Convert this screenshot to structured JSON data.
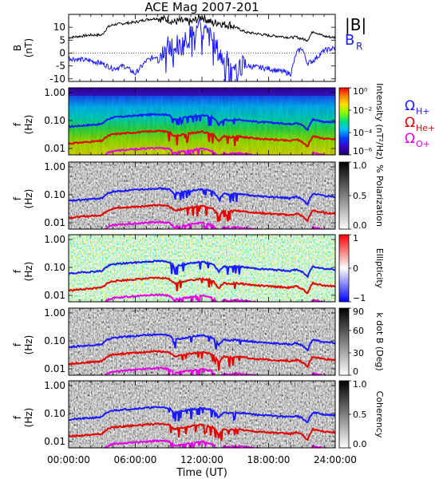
{
  "title": "ACE Mag 2007-201",
  "xlabel": "Time (UT)",
  "xticks": [
    "00:00:00",
    "06:00:00",
    "12:00:00",
    "18:00:00",
    "24:00:00"
  ],
  "freq_ticks": [
    "1.00",
    "0.10",
    "0.01"
  ],
  "freq_label": "f",
  "freq_unit": "(Hz)",
  "gyro_legend": [
    {
      "label": "Ω",
      "sub": "H+",
      "color": "#1a1aff"
    },
    {
      "label": "Ω",
      "sub": "He+",
      "color": "#e60000"
    },
    {
      "label": "Ω",
      "sub": "O+",
      "color": "#e600e6"
    }
  ],
  "chart_data": [
    {
      "type": "line",
      "panel": "magnetic-field",
      "ylabel": "B",
      "yunit": "(nT)",
      "yticks": [
        "10",
        "5",
        "0",
        "-5",
        "-10"
      ],
      "ylim": [
        -11,
        15
      ],
      "x_hours": [
        0,
        1,
        2,
        3,
        3.5,
        4,
        5,
        6,
        7,
        8,
        9,
        9.5,
        10,
        11,
        12,
        13,
        13.5,
        14,
        14.5,
        15,
        16,
        17,
        18,
        19,
        20,
        20.5,
        21,
        21.5,
        22,
        23,
        24
      ],
      "series": [
        {
          "name": "|B|",
          "color": "#000000",
          "values": [
            6,
            6.5,
            7,
            7,
            10,
            11,
            11.5,
            12,
            13,
            13.5,
            13,
            12,
            12.5,
            12,
            14,
            11.5,
            12,
            11,
            11,
            10,
            8,
            7.5,
            6.8,
            6.5,
            6,
            6.2,
            5.5,
            5,
            8.5,
            6.5,
            6
          ]
        },
        {
          "name": "B",
          "sub": "R",
          "color": "#1a1aff",
          "values": [
            -2,
            -2.5,
            -3,
            -4,
            -5,
            -6,
            -5,
            -8,
            -3,
            -1,
            3,
            5,
            2,
            7,
            9,
            5,
            0,
            -3,
            -4,
            -4.5,
            -5,
            -5.5,
            -6,
            -7,
            -8,
            0,
            2,
            -4,
            -3,
            1,
            2
          ]
        }
      ]
    },
    {
      "type": "heatmap",
      "panel": "intensity",
      "colorbar_label": "Intensity (nT²/Hz)",
      "colorbar_ticks": [
        "10⁰",
        "10⁻²",
        "10⁻⁴",
        "10⁻⁶"
      ],
      "scale": "log",
      "range": [
        1e-06,
        1
      ]
    },
    {
      "type": "heatmap",
      "panel": "polarization",
      "colorbar_label": "% Polarization",
      "colorbar_ticks": [
        "1.0",
        "0.5",
        "0.0"
      ],
      "range": [
        0,
        1
      ]
    },
    {
      "type": "heatmap",
      "panel": "ellipticity",
      "colorbar_label": "Ellipticity",
      "colorbar_ticks": [
        "1",
        "0",
        "−1"
      ],
      "range": [
        -1,
        1
      ]
    },
    {
      "type": "heatmap",
      "panel": "wave-normal-angle",
      "colorbar_label": "k dot B (Deg)",
      "colorbar_ticks": [
        "90",
        "60",
        "30",
        "0"
      ],
      "range": [
        0,
        90
      ]
    },
    {
      "type": "heatmap",
      "panel": "coherency",
      "colorbar_label": "Coherency",
      "colorbar_ticks": [
        "1.0",
        "0.5",
        "0.0"
      ],
      "range": [
        0,
        1
      ]
    }
  ],
  "gyrofrequency_lines": {
    "x_hours": [
      0,
      1,
      2,
      3,
      3.5,
      4,
      5,
      6,
      7,
      8,
      9,
      9.5,
      10,
      11,
      12,
      13,
      13.5,
      14,
      14.5,
      15,
      16,
      17,
      18,
      19,
      20,
      20.5,
      21,
      21.5,
      22,
      23,
      24
    ],
    "H+": [
      0.06,
      0.065,
      0.07,
      0.075,
      0.11,
      0.13,
      0.14,
      0.15,
      0.16,
      0.17,
      0.16,
      0.11,
      0.12,
      0.14,
      0.16,
      0.13,
      0.07,
      0.11,
      0.1,
      0.11,
      0.1,
      0.09,
      0.085,
      0.08,
      0.075,
      0.085,
      0.07,
      0.045,
      0.11,
      0.09,
      0.085
    ]
  }
}
